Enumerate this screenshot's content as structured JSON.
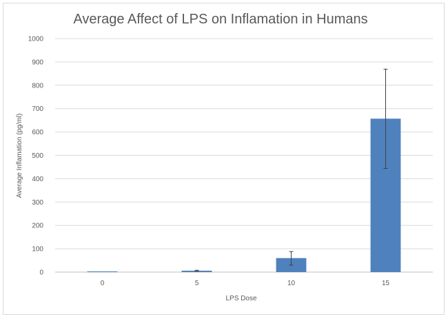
{
  "chart_data": {
    "type": "bar",
    "title": "Average Affect of LPS on Inflamation in Humans",
    "xlabel": "LPS Dose",
    "ylabel": "Average Inflamation  (pg/ml)",
    "categories": [
      "0",
      "5",
      "10",
      "15"
    ],
    "values": [
      3,
      6,
      60,
      657
    ],
    "error_low": [
      0,
      2,
      30,
      213
    ],
    "error_high": [
      0,
      2,
      28,
      212
    ],
    "ylim": [
      0,
      1000
    ],
    "yticks": [
      "0",
      "100",
      "200",
      "300",
      "400",
      "500",
      "600",
      "700",
      "800",
      "900",
      "1000"
    ],
    "grid": true,
    "legend": "none",
    "bar_color": "#4f81bd"
  }
}
